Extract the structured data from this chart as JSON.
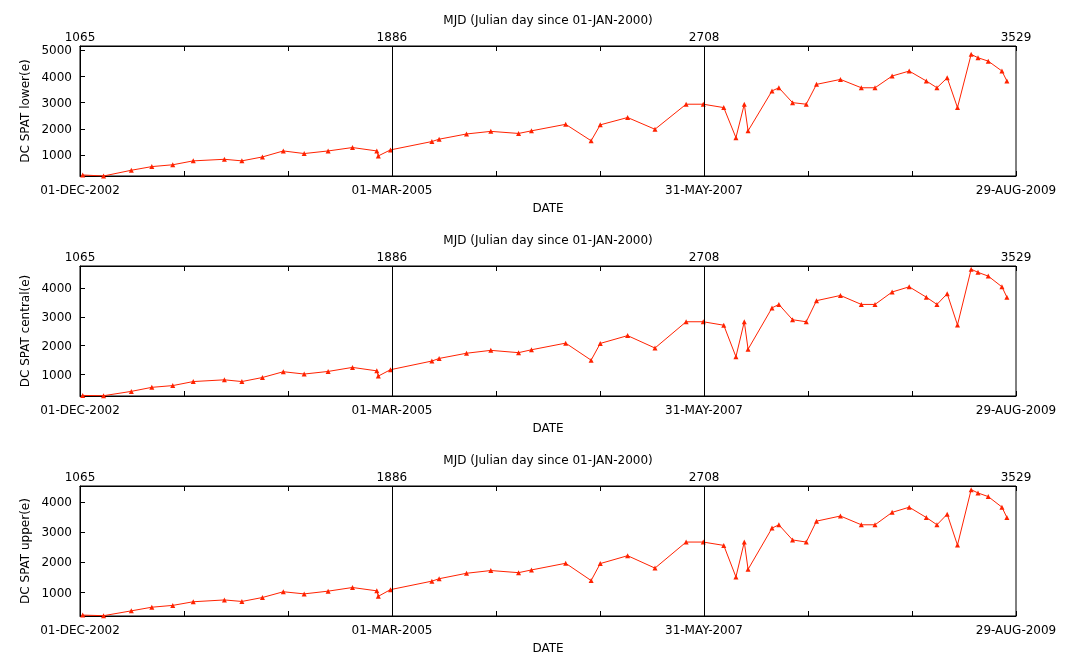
{
  "chart_data": [
    {
      "type": "line",
      "xlabel": "DATE",
      "ylabel": "DC SPAT lower(e)",
      "x2label": "MJD (Julian day since 01-JAN-2000)",
      "marker": "triangle",
      "xlim": [
        "2002-12-01",
        "2009-08-29"
      ],
      "xticks": [
        {
          "value": "2002-12-01",
          "label": "01-DEC-2002"
        },
        {
          "value": "2003-09-01",
          "label": null
        },
        {
          "value": "2004-05-31",
          "label": null
        },
        {
          "value": "2005-03-01",
          "label": "01-MAR-2005"
        },
        {
          "value": "2005-11-30",
          "label": null
        },
        {
          "value": "2006-08-31",
          "label": null
        },
        {
          "value": "2007-05-31",
          "label": "31-MAY-2007"
        },
        {
          "value": "2008-03-01",
          "label": null
        },
        {
          "value": "2008-11-29",
          "label": null
        },
        {
          "value": "2009-08-29",
          "label": "29-AUG-2009"
        }
      ],
      "x2lim": [
        1065,
        3529
      ],
      "x2ticks": [
        1065,
        {
          "value": 1339,
          "label": null
        },
        {
          "value": 1612,
          "label": null
        },
        1886,
        {
          "value": 2160,
          "label": null
        },
        {
          "value": 2434,
          "label": null
        },
        2708,
        {
          "value": 2982,
          "label": null
        },
        {
          "value": 3255,
          "label": null
        },
        3529
      ],
      "ylim": [
        190,
        5170
      ],
      "yticks": [
        1000,
        2000,
        3000,
        4000,
        5000
      ],
      "ref_lines": [
        {
          "axis": "x",
          "value": "2005-03-01",
          "color": "#000000"
        },
        {
          "axis": "x",
          "value": "2007-05-31",
          "color": "#000000"
        }
      ],
      "x": [
        "2002-12-08",
        "2003-02-01",
        "2003-04-15",
        "2003-06-08",
        "2003-08-02",
        "2003-09-25",
        "2003-12-16",
        "2004-01-31",
        "2004-03-25",
        "2004-05-19",
        "2004-07-13",
        "2004-09-14",
        "2004-11-17",
        "2005-01-20",
        "2005-01-24",
        "2005-02-25",
        "2005-06-14",
        "2005-07-03",
        "2005-09-13",
        "2005-11-16",
        "2006-01-28",
        "2006-03-03",
        "2006-06-01",
        "2006-08-07",
        "2006-08-31",
        "2006-11-11",
        "2007-01-22",
        "2007-04-14",
        "2007-05-29",
        "2007-07-22",
        "2007-08-23",
        "2007-09-14",
        "2007-09-24",
        "2007-11-26",
        "2007-12-14",
        "2008-01-19",
        "2008-02-24",
        "2008-03-22",
        "2008-05-24",
        "2008-07-18",
        "2008-08-23",
        "2008-10-07",
        "2008-11-21",
        "2009-01-05",
        "2009-02-02",
        "2009-03-01",
        "2009-03-28",
        "2009-05-03",
        "2009-05-21",
        "2009-06-17",
        "2009-07-23",
        "2009-08-05"
      ],
      "series": [
        {
          "color": "#ff2200",
          "values": [
            230,
            190,
            410,
            550,
            620,
            770,
            830,
            770,
            920,
            1150,
            1050,
            1150,
            1280,
            1150,
            960,
            1190,
            1510,
            1600,
            1800,
            1900,
            1820,
            1920,
            2170,
            1540,
            2150,
            2430,
            1980,
            2940,
            2940,
            2810,
            1660,
            2940,
            1920,
            3450,
            3570,
            3000,
            2940,
            3700,
            3890,
            3570,
            3570,
            4020,
            4210,
            3830,
            3570,
            3950,
            2810,
            4850,
            4720,
            4590,
            4210,
            3830
          ]
        }
      ]
    },
    {
      "type": "line",
      "xlabel": "DATE",
      "ylabel": "DC SPAT central(e)",
      "x2label": "MJD (Julian day since 01-JAN-2000)",
      "marker": "triangle",
      "xlim": [
        "2002-12-01",
        "2009-08-29"
      ],
      "xticks": [
        {
          "value": "2002-12-01",
          "label": "01-DEC-2002"
        },
        {
          "value": "2003-09-01",
          "label": null
        },
        {
          "value": "2004-05-31",
          "label": null
        },
        {
          "value": "2005-03-01",
          "label": "01-MAR-2005"
        },
        {
          "value": "2005-11-30",
          "label": null
        },
        {
          "value": "2006-08-31",
          "label": null
        },
        {
          "value": "2007-05-31",
          "label": "31-MAY-2007"
        },
        {
          "value": "2008-03-01",
          "label": null
        },
        {
          "value": "2008-11-29",
          "label": null
        },
        {
          "value": "2009-08-29",
          "label": "29-AUG-2009"
        }
      ],
      "x2lim": [
        1065,
        3529
      ],
      "x2ticks": [
        1065,
        {
          "value": 1339,
          "label": null
        },
        {
          "value": 1612,
          "label": null
        },
        1886,
        {
          "value": 2160,
          "label": null
        },
        {
          "value": 2434,
          "label": null
        },
        2708,
        {
          "value": 2982,
          "label": null
        },
        {
          "value": 3255,
          "label": null
        },
        3529
      ],
      "ylim": [
        260,
        4760
      ],
      "yticks": [
        1000,
        2000,
        3000,
        4000
      ],
      "ref_lines": [
        {
          "axis": "x",
          "value": "2005-03-01",
          "color": "#000000"
        },
        {
          "axis": "x",
          "value": "2007-05-31",
          "color": "#000000"
        }
      ],
      "x": [
        "2002-12-08",
        "2003-02-01",
        "2003-04-15",
        "2003-06-08",
        "2003-08-02",
        "2003-09-25",
        "2003-12-16",
        "2004-01-31",
        "2004-03-25",
        "2004-05-19",
        "2004-07-13",
        "2004-09-14",
        "2004-11-17",
        "2005-01-20",
        "2005-01-24",
        "2005-02-25",
        "2005-06-14",
        "2005-07-03",
        "2005-09-13",
        "2005-11-16",
        "2006-01-28",
        "2006-03-03",
        "2006-06-01",
        "2006-08-07",
        "2006-08-31",
        "2006-11-11",
        "2007-01-22",
        "2007-04-14",
        "2007-05-29",
        "2007-07-22",
        "2007-08-23",
        "2007-09-14",
        "2007-09-24",
        "2007-11-26",
        "2007-12-14",
        "2008-01-19",
        "2008-02-24",
        "2008-03-22",
        "2008-05-24",
        "2008-07-18",
        "2008-08-23",
        "2008-10-07",
        "2008-11-21",
        "2009-01-05",
        "2009-02-02",
        "2009-03-01",
        "2009-03-28",
        "2009-05-03",
        "2009-05-21",
        "2009-06-17",
        "2009-07-23",
        "2009-08-05"
      ],
      "series": [
        {
          "color": "#ff2200",
          "values": [
            280,
            270,
            420,
            560,
            620,
            760,
            820,
            760,
            900,
            1100,
            1020,
            1110,
            1250,
            1130,
            950,
            1170,
            1470,
            1560,
            1740,
            1840,
            1760,
            1860,
            2090,
            1500,
            2080,
            2350,
            1920,
            2830,
            2830,
            2710,
            1620,
            2830,
            1880,
            3310,
            3430,
            2900,
            2830,
            3560,
            3740,
            3430,
            3430,
            3860,
            4040,
            3680,
            3430,
            3800,
            2720,
            4650,
            4540,
            4410,
            4040,
            3680
          ]
        }
      ]
    },
    {
      "type": "line",
      "xlabel": "DATE",
      "ylabel": "DC SPAT upper(e)",
      "x2label": "MJD (Julian day since 01-JAN-2000)",
      "marker": "triangle",
      "xlim": [
        "2002-12-01",
        "2009-08-29"
      ],
      "xticks": [
        {
          "value": "2002-12-01",
          "label": "01-DEC-2002"
        },
        {
          "value": "2003-09-01",
          "label": null
        },
        {
          "value": "2004-05-31",
          "label": null
        },
        {
          "value": "2005-03-01",
          "label": "01-MAR-2005"
        },
        {
          "value": "2005-11-30",
          "label": null
        },
        {
          "value": "2006-08-31",
          "label": null
        },
        {
          "value": "2007-05-31",
          "label": "31-MAY-2007"
        },
        {
          "value": "2008-03-01",
          "label": null
        },
        {
          "value": "2008-11-29",
          "label": null
        },
        {
          "value": "2009-08-29",
          "label": "29-AUG-2009"
        }
      ],
      "x2lim": [
        1065,
        3529
      ],
      "x2ticks": [
        1065,
        {
          "value": 1339,
          "label": null
        },
        {
          "value": 1612,
          "label": null
        },
        1886,
        {
          "value": 2160,
          "label": null
        },
        {
          "value": 2434,
          "label": null
        },
        2708,
        {
          "value": 2982,
          "label": null
        },
        {
          "value": 3255,
          "label": null
        },
        3529
      ],
      "ylim": [
        230,
        4520
      ],
      "yticks": [
        1000,
        2000,
        3000,
        4000
      ],
      "ref_lines": [
        {
          "axis": "x",
          "value": "2005-03-01",
          "color": "#000000"
        },
        {
          "axis": "x",
          "value": "2007-05-31",
          "color": "#000000"
        }
      ],
      "x": [
        "2002-12-08",
        "2003-02-01",
        "2003-04-15",
        "2003-06-08",
        "2003-08-02",
        "2003-09-25",
        "2003-12-16",
        "2004-01-31",
        "2004-03-25",
        "2004-05-19",
        "2004-07-13",
        "2004-09-14",
        "2004-11-17",
        "2005-01-20",
        "2005-01-24",
        "2005-02-25",
        "2005-06-14",
        "2005-07-03",
        "2005-09-13",
        "2005-11-16",
        "2006-01-28",
        "2006-03-03",
        "2006-06-01",
        "2006-08-07",
        "2006-08-31",
        "2006-11-11",
        "2007-01-22",
        "2007-04-14",
        "2007-05-29",
        "2007-07-22",
        "2007-08-23",
        "2007-09-14",
        "2007-09-24",
        "2007-11-26",
        "2007-12-14",
        "2008-01-19",
        "2008-02-24",
        "2008-03-22",
        "2008-05-24",
        "2008-07-18",
        "2008-08-23",
        "2008-10-07",
        "2008-11-21",
        "2009-01-05",
        "2009-02-02",
        "2009-03-01",
        "2009-03-28",
        "2009-05-03",
        "2009-05-21",
        "2009-06-17",
        "2009-07-23",
        "2009-08-05"
      ],
      "series": [
        {
          "color": "#ff2200",
          "values": [
            260,
            240,
            400,
            520,
            580,
            700,
            760,
            710,
            840,
            1030,
            960,
            1050,
            1170,
            1060,
            880,
            1100,
            1380,
            1460,
            1640,
            1730,
            1660,
            1750,
            1970,
            1400,
            1960,
            2220,
            1810,
            2670,
            2670,
            2560,
            1520,
            2670,
            1770,
            3130,
            3240,
            2740,
            2670,
            3360,
            3530,
            3240,
            3240,
            3650,
            3820,
            3480,
            3240,
            3590,
            2570,
            4400,
            4290,
            4170,
            3820,
            3480
          ]
        }
      ]
    }
  ]
}
